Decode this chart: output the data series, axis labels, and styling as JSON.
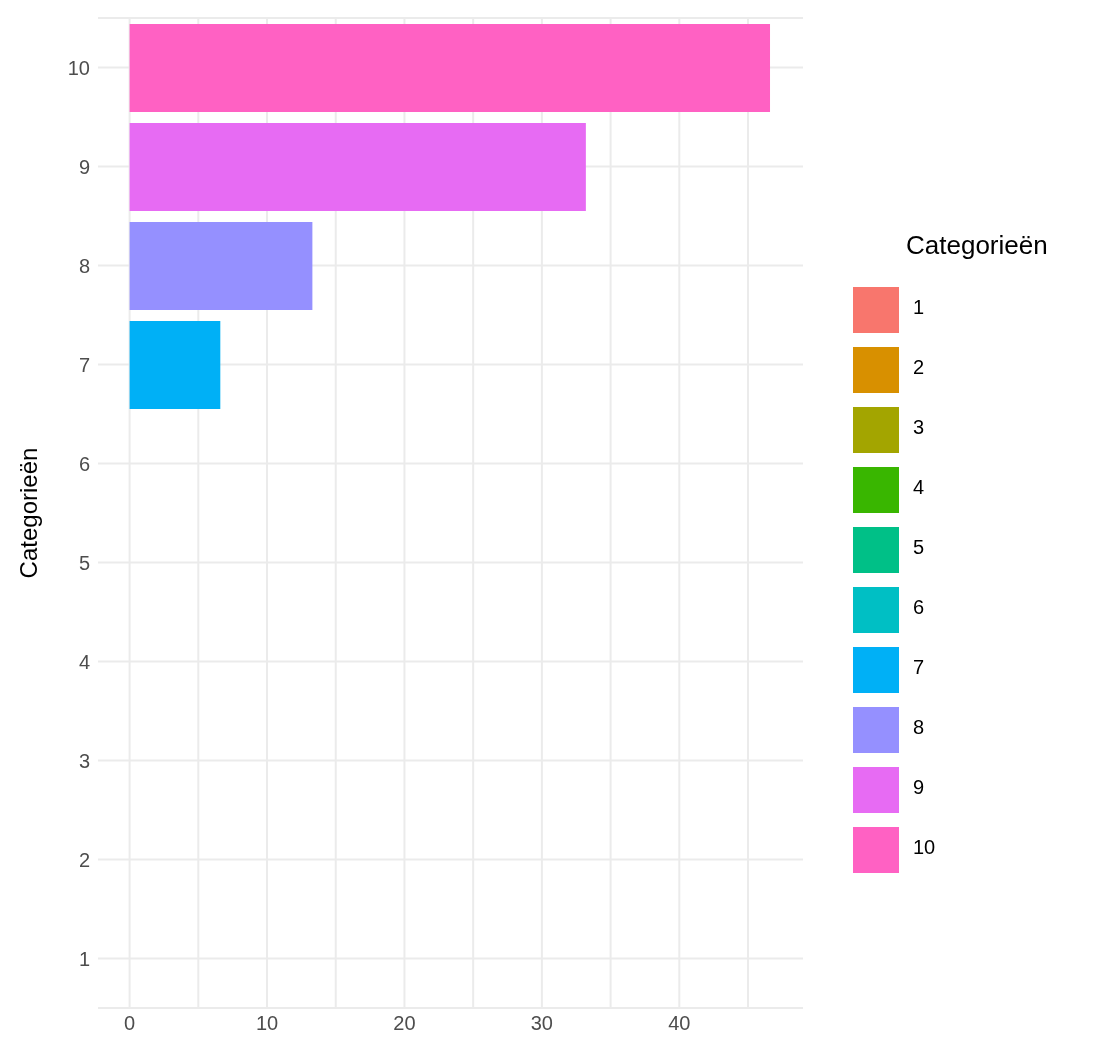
{
  "chart_data": {
    "type": "bar",
    "orientation": "horizontal",
    "stacked": true,
    "ylabel": "Categorieën",
    "legend_title": "Categorieën",
    "legend": "right",
    "grid": true,
    "categories": [
      "10",
      "9",
      "8",
      "7",
      "6",
      "5",
      "4",
      "3",
      "2",
      "1"
    ],
    "series": [
      {
        "name": "1",
        "color": "#f8766d",
        "values": [
          null,
          null,
          null,
          null,
          null,
          null,
          null,
          null,
          null,
          0
        ]
      },
      {
        "name": "2",
        "color": "#d89000",
        "values": [
          null,
          null,
          null,
          null,
          null,
          null,
          null,
          null,
          0,
          null
        ]
      },
      {
        "name": "3",
        "color": "#a3a500",
        "values": [
          null,
          null,
          null,
          null,
          null,
          null,
          null,
          0,
          null,
          null
        ]
      },
      {
        "name": "4",
        "color": "#39b600",
        "values": [
          null,
          null,
          null,
          null,
          null,
          null,
          0,
          null,
          null,
          null
        ]
      },
      {
        "name": "5",
        "color": "#00c087",
        "values": [
          null,
          null,
          null,
          null,
          null,
          0,
          null,
          null,
          null,
          null
        ]
      },
      {
        "name": "6",
        "color": "#00bfc4",
        "values": [
          null,
          null,
          null,
          null,
          0,
          null,
          null,
          null,
          null,
          null
        ]
      },
      {
        "name": "7",
        "color": "#00b0f6",
        "values": [
          null,
          null,
          null,
          6.6,
          null,
          null,
          null,
          null,
          null,
          null
        ]
      },
      {
        "name": "8",
        "color": "#9590ff",
        "values": [
          null,
          null,
          13.3,
          null,
          null,
          null,
          null,
          null,
          null,
          null
        ]
      },
      {
        "name": "9",
        "color": "#e76bf3",
        "values": [
          null,
          33.2,
          null,
          null,
          null,
          null,
          null,
          null,
          null,
          null
        ]
      },
      {
        "name": "10",
        "color": "#ff61c3",
        "values": [
          46.6,
          null,
          null,
          null,
          null,
          null,
          null,
          null,
          null,
          null
        ]
      }
    ],
    "xlim": [
      -2.3,
      49
    ],
    "xticks": [
      0,
      {
        "value": 5,
        "label": null
      },
      10,
      {
        "value": 15,
        "label": null
      },
      20,
      {
        "value": 25,
        "label": null
      },
      30,
      {
        "value": 35,
        "label": null
      },
      40,
      {
        "value": 45,
        "label": null
      }
    ]
  }
}
